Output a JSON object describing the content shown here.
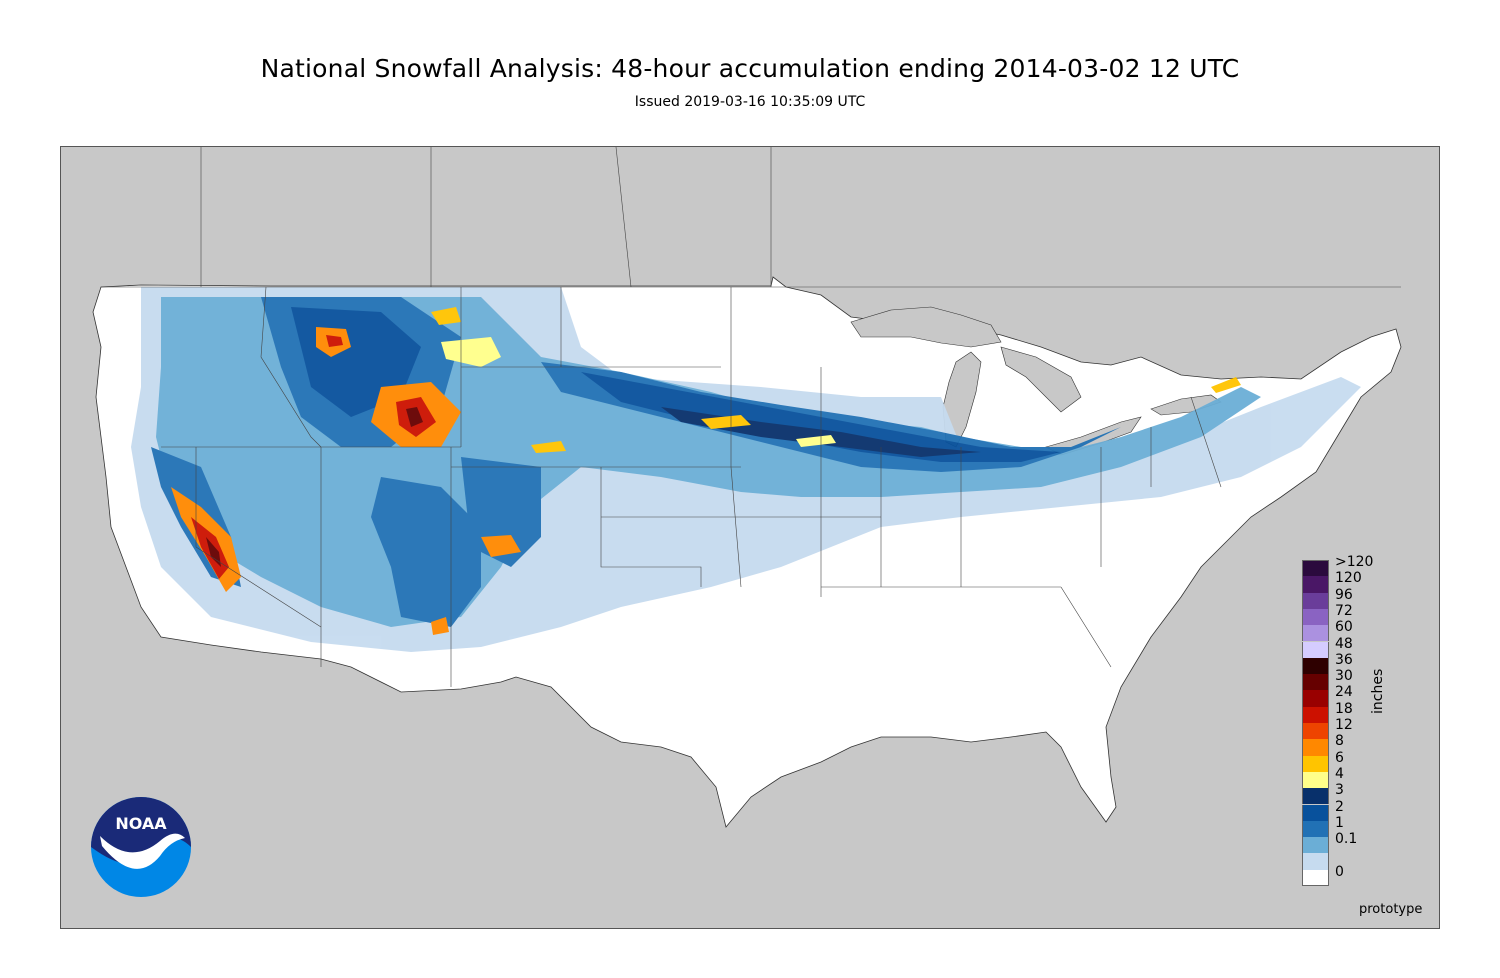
{
  "header": {
    "title": "National Snowfall Analysis: 48-hour accumulation ending 2014-03-02 12 UTC",
    "subtitle": "Issued 2019-03-16 10:35:09 UTC"
  },
  "map": {
    "background_color": "#c8c8c8",
    "land_color": "#ffffff",
    "region": "Contiguous United States"
  },
  "legend": {
    "unit": "inches",
    "entries": [
      {
        "label": ">120",
        "color": "#2b0a3d"
      },
      {
        "label": "120",
        "color": "#4a1766"
      },
      {
        "label": "96",
        "color": "#6a3d9a"
      },
      {
        "label": "72",
        "color": "#8a63c2"
      },
      {
        "label": "60",
        "color": "#ab91e0"
      },
      {
        "label": "48",
        "color": "#d5ccff"
      },
      {
        "label": "36",
        "color": "#2e0000"
      },
      {
        "label": "30",
        "color": "#660000"
      },
      {
        "label": "24",
        "color": "#990000"
      },
      {
        "label": "18",
        "color": "#cc1100"
      },
      {
        "label": "12",
        "color": "#ee4400"
      },
      {
        "label": "8",
        "color": "#ff8800"
      },
      {
        "label": "6",
        "color": "#ffc400"
      },
      {
        "label": "4",
        "color": "#ffff8a"
      },
      {
        "label": "3",
        "color": "#08306b"
      },
      {
        "label": "2",
        "color": "#08519c"
      },
      {
        "label": "1",
        "color": "#2171b5"
      },
      {
        "label": "0.1",
        "color": "#6baed6"
      },
      {
        "label": "",
        "color": "#c6dbef"
      },
      {
        "label": "0",
        "color": "#ffffff"
      }
    ],
    "displayed_labels": [
      ">120",
      "120",
      "96",
      "72",
      "60",
      "48",
      "36",
      "30",
      "24",
      "18",
      "12",
      "8",
      "6",
      "4",
      "3",
      "2",
      "1",
      "0.1",
      "0"
    ]
  },
  "footer": {
    "prototype_label": "prototype",
    "logo_text": "NOAA"
  }
}
